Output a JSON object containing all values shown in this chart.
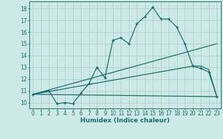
{
  "xlabel": "Humidex (Indice chaleur)",
  "xlim": [
    -0.5,
    23.5
  ],
  "ylim": [
    9.5,
    18.6
  ],
  "yticks": [
    10,
    11,
    12,
    13,
    14,
    15,
    16,
    17,
    18
  ],
  "xticks": [
    0,
    1,
    2,
    3,
    4,
    5,
    6,
    7,
    8,
    9,
    10,
    11,
    12,
    13,
    14,
    15,
    16,
    17,
    18,
    19,
    20,
    21,
    22,
    23
  ],
  "bg_color": "#cce9e8",
  "grid_color": "#b0d0cf",
  "line_color": "#1a6b6b",
  "line1_x": [
    0,
    2,
    3,
    4,
    5,
    6,
    7,
    8,
    9,
    10,
    11,
    12,
    13,
    14,
    15,
    16,
    17,
    18,
    19,
    20,
    21,
    22,
    23
  ],
  "line1_y": [
    10.7,
    11.0,
    9.9,
    10.0,
    9.9,
    10.8,
    11.6,
    13.0,
    12.1,
    15.3,
    15.5,
    15.0,
    16.7,
    17.3,
    18.1,
    17.1,
    17.1,
    16.4,
    15.0,
    13.1,
    12.9,
    12.6,
    10.5
  ],
  "line2_x": [
    0,
    23
  ],
  "line2_y": [
    10.7,
    15.0
  ],
  "line3_x": [
    0,
    20,
    21,
    22,
    23
  ],
  "line3_y": [
    10.7,
    13.1,
    13.1,
    12.8,
    10.5
  ],
  "line4_x": [
    0,
    23
  ],
  "line4_y": [
    10.7,
    10.5
  ]
}
